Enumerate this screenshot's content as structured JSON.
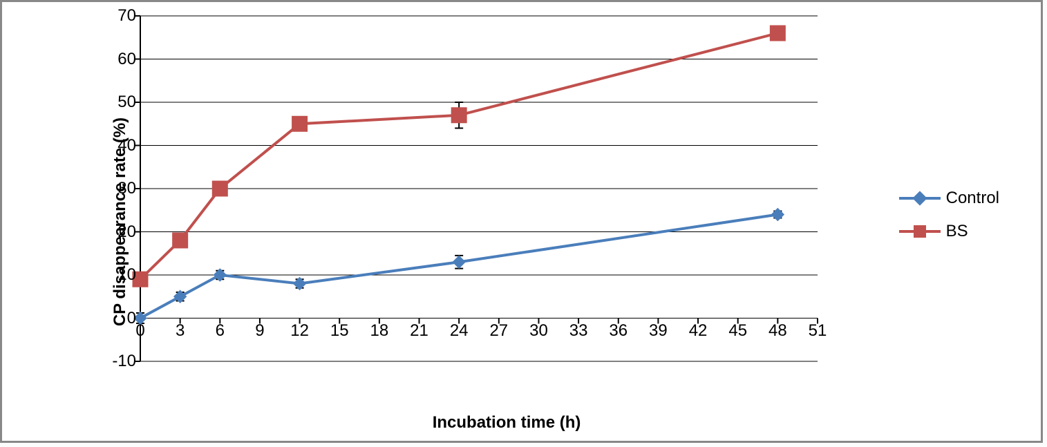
{
  "chart": {
    "type": "line",
    "xlabel": "Incubation time (h)",
    "ylabel": "CP disappearance rate (%)",
    "xlim": [
      0,
      51
    ],
    "ylim": [
      -10,
      70
    ],
    "xtick_step": 3,
    "ytick_step": 10,
    "xticks": [
      0,
      3,
      6,
      9,
      12,
      15,
      18,
      21,
      24,
      27,
      30,
      33,
      36,
      39,
      42,
      45,
      48,
      51
    ],
    "yticks": [
      -10,
      0,
      10,
      20,
      30,
      40,
      50,
      60,
      70
    ],
    "background_color": "#ffffff",
    "grid_color": "#000000",
    "axis_color": "#000000",
    "title_fontsize": 24,
    "label_fontsize": 24,
    "tick_fontsize": 24,
    "legend_position": "right",
    "line_width": 4,
    "series": [
      {
        "name": "Control",
        "color": "#4a7ebb",
        "marker": "diamond",
        "marker_size": 18,
        "x": [
          0,
          3,
          6,
          12,
          24,
          48
        ],
        "y": [
          0,
          5,
          10,
          8,
          13,
          24
        ],
        "err": [
          1.2,
          1.0,
          1.0,
          1.0,
          1.5,
          0.8
        ]
      },
      {
        "name": "BS",
        "color": "#c0504d",
        "marker": "square",
        "marker_size": 22,
        "x": [
          0,
          3,
          6,
          12,
          24,
          48
        ],
        "y": [
          9,
          18,
          30,
          45,
          47,
          66
        ],
        "err": [
          0.5,
          1.5,
          1.5,
          1.0,
          3.0,
          0.8
        ]
      }
    ]
  }
}
